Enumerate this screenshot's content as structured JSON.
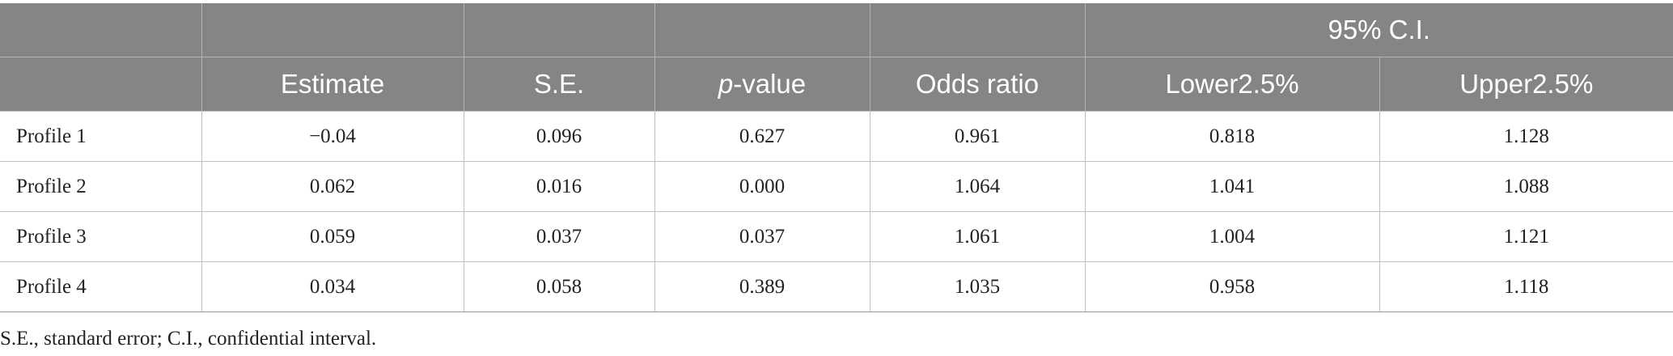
{
  "table": {
    "group_header": "95% C.I.",
    "columns": {
      "estimate": "Estimate",
      "se": "S.E.",
      "p_italic": "p",
      "p_rest": "-value",
      "odds": "Odds ratio",
      "lower": "Lower2.5%",
      "upper": "Upper2.5%"
    },
    "rows": [
      {
        "label": "Profile 1",
        "estimate": "−0.04",
        "se": "0.096",
        "p": "0.627",
        "odds": "0.961",
        "lower": "0.818",
        "upper": "1.128"
      },
      {
        "label": "Profile 2",
        "estimate": "0.062",
        "se": "0.016",
        "p": "0.000",
        "odds": "1.064",
        "lower": "1.041",
        "upper": "1.088"
      },
      {
        "label": "Profile 3",
        "estimate": "0.059",
        "se": "0.037",
        "p": "0.037",
        "odds": "1.061",
        "lower": "1.004",
        "upper": "1.121"
      },
      {
        "label": "Profile 4",
        "estimate": "0.034",
        "se": "0.058",
        "p": "0.389",
        "odds": "1.035",
        "lower": "0.958",
        "upper": "1.118"
      }
    ]
  },
  "footnote": "S.E., standard error; C.I., confidential interval."
}
